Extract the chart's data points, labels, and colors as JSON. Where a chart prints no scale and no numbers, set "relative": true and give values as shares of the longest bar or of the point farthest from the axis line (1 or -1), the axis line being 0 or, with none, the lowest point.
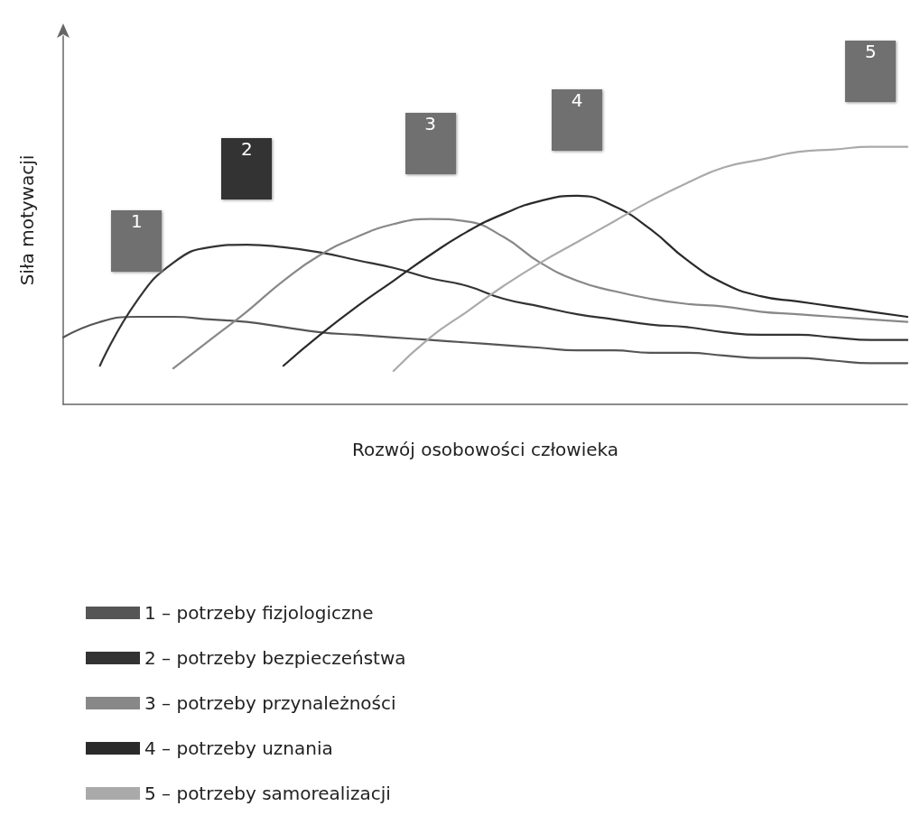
{
  "chart_data": {
    "type": "line",
    "relative": true,
    "xlabel": "Rozwój osobowości człowieka",
    "ylabel": "Siła motywacji",
    "categories": [
      null,
      null,
      null,
      null,
      null,
      null,
      null,
      null,
      null,
      null,
      null,
      null,
      null,
      null,
      null,
      null,
      null,
      null,
      null,
      null,
      null,
      null,
      null,
      null
    ],
    "series": [
      {
        "name": "1 – potrzeby fizjologiczne",
        "color": "#555555",
        "values": [
          0.26,
          0.32,
          0.34,
          0.34,
          0.33,
          0.32,
          0.3,
          0.28,
          0.27,
          0.26,
          0.25,
          0.24,
          0.23,
          0.22,
          0.21,
          0.21,
          0.2,
          0.2,
          0.19,
          0.18,
          0.18,
          0.17,
          0.16,
          0.16
        ]
      },
      {
        "name": "2 – potrzeby bezpieczeństwa",
        "color": "#333333",
        "values": [
          null,
          0.15,
          0.4,
          0.55,
          0.61,
          0.62,
          0.61,
          0.59,
          0.56,
          0.53,
          0.49,
          0.46,
          0.41,
          0.38,
          0.35,
          0.33,
          0.31,
          0.3,
          0.28,
          0.27,
          0.27,
          0.26,
          0.25,
          0.25
        ]
      },
      {
        "name": "3 – potrzeby przynależności",
        "color": "#888888",
        "values": [
          null,
          null,
          null,
          0.14,
          0.25,
          0.36,
          0.48,
          0.58,
          0.65,
          0.7,
          0.72,
          0.71,
          0.65,
          0.55,
          0.48,
          0.44,
          0.41,
          0.39,
          0.38,
          0.36,
          0.35,
          0.34,
          0.33,
          0.32
        ]
      },
      {
        "name": "4 – potrzeby uznania",
        "color": "#2a2a2a",
        "values": [
          null,
          null,
          null,
          null,
          null,
          null,
          0.15,
          0.27,
          0.38,
          0.48,
          0.58,
          0.67,
          0.74,
          0.79,
          0.81,
          0.77,
          0.68,
          0.56,
          0.47,
          0.42,
          0.4,
          0.38,
          0.36,
          0.34
        ]
      },
      {
        "name": "5 – potrzeby samorealizacji",
        "color": "#aaaaaa",
        "values": [
          null,
          null,
          null,
          null,
          null,
          null,
          null,
          null,
          null,
          0.13,
          0.26,
          0.36,
          0.46,
          0.55,
          0.63,
          0.71,
          0.79,
          0.86,
          0.92,
          0.95,
          0.98,
          0.99,
          1,
          1
        ]
      }
    ],
    "annotations": [
      "1",
      "2",
      "3",
      "4",
      "5"
    ],
    "legend": "bottom",
    "marker": "none",
    "line_style": "solid",
    "grid": false
  }
}
